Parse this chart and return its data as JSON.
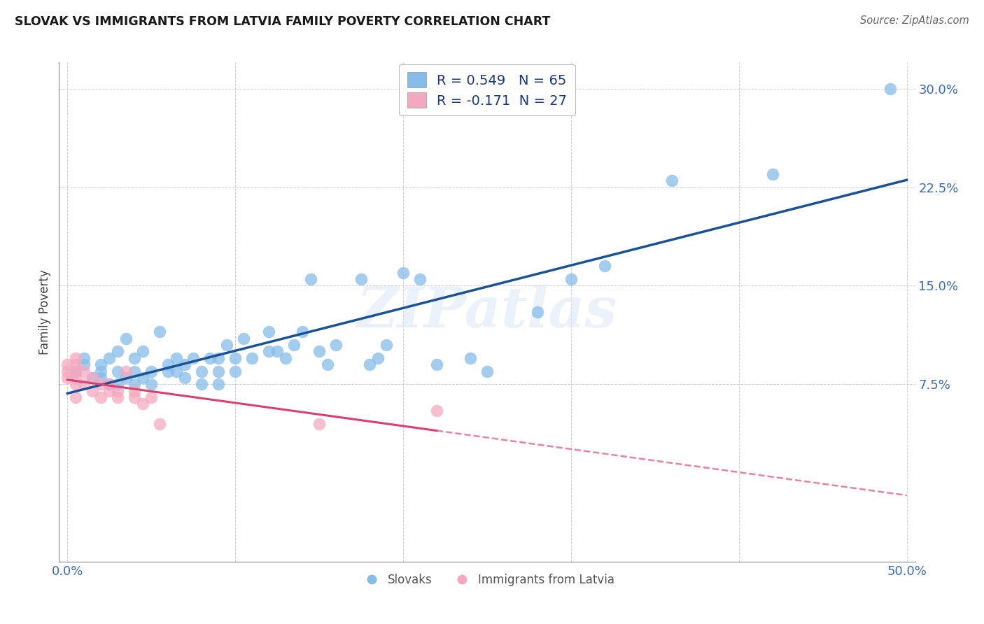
{
  "title": "SLOVAK VS IMMIGRANTS FROM LATVIA FAMILY POVERTY CORRELATION CHART",
  "source": "Source: ZipAtlas.com",
  "ylabel": "Family Poverty",
  "xlabel": "",
  "xlim": [
    -0.005,
    0.505
  ],
  "ylim": [
    -0.06,
    0.32
  ],
  "xticks": [
    0.0,
    0.1,
    0.2,
    0.3,
    0.4,
    0.5
  ],
  "xticklabels": [
    "0.0%",
    "",
    "",
    "",
    "",
    "50.0%"
  ],
  "yticks": [
    0.075,
    0.15,
    0.225,
    0.3
  ],
  "yticklabels": [
    "7.5%",
    "15.0%",
    "22.5%",
    "30.0%"
  ],
  "R_slovak": 0.549,
  "N_slovak": 65,
  "R_latvia": -0.171,
  "N_latvia": 27,
  "color_slovak": "#85bce8",
  "color_latvia": "#f4a8c0",
  "line_color_slovak": "#1a5296",
  "line_color_latvia": "#d94070",
  "watermark": "ZIPatlas",
  "legend_labels": [
    "Slovaks",
    "Immigrants from Latvia"
  ],
  "slovak_x": [
    0.005,
    0.01,
    0.01,
    0.015,
    0.02,
    0.02,
    0.02,
    0.025,
    0.025,
    0.03,
    0.03,
    0.03,
    0.035,
    0.035,
    0.04,
    0.04,
    0.04,
    0.045,
    0.045,
    0.05,
    0.05,
    0.055,
    0.06,
    0.06,
    0.065,
    0.065,
    0.07,
    0.07,
    0.075,
    0.08,
    0.08,
    0.085,
    0.09,
    0.09,
    0.09,
    0.095,
    0.1,
    0.1,
    0.105,
    0.11,
    0.12,
    0.12,
    0.125,
    0.13,
    0.135,
    0.14,
    0.145,
    0.15,
    0.155,
    0.16,
    0.175,
    0.18,
    0.185,
    0.19,
    0.2,
    0.21,
    0.22,
    0.24,
    0.25,
    0.28,
    0.3,
    0.32,
    0.36,
    0.42,
    0.49
  ],
  "slovak_y": [
    0.085,
    0.09,
    0.095,
    0.08,
    0.08,
    0.085,
    0.09,
    0.075,
    0.095,
    0.075,
    0.085,
    0.1,
    0.08,
    0.11,
    0.075,
    0.085,
    0.095,
    0.08,
    0.1,
    0.075,
    0.085,
    0.115,
    0.085,
    0.09,
    0.085,
    0.095,
    0.08,
    0.09,
    0.095,
    0.075,
    0.085,
    0.095,
    0.075,
    0.085,
    0.095,
    0.105,
    0.085,
    0.095,
    0.11,
    0.095,
    0.1,
    0.115,
    0.1,
    0.095,
    0.105,
    0.115,
    0.155,
    0.1,
    0.09,
    0.105,
    0.155,
    0.09,
    0.095,
    0.105,
    0.16,
    0.155,
    0.09,
    0.095,
    0.085,
    0.13,
    0.155,
    0.165,
    0.23,
    0.235,
    0.3
  ],
  "latvia_x": [
    0.0,
    0.0,
    0.0,
    0.005,
    0.005,
    0.005,
    0.005,
    0.005,
    0.005,
    0.01,
    0.01,
    0.015,
    0.015,
    0.02,
    0.02,
    0.025,
    0.025,
    0.03,
    0.03,
    0.035,
    0.04,
    0.04,
    0.045,
    0.05,
    0.055,
    0.15,
    0.22
  ],
  "latvia_y": [
    0.08,
    0.085,
    0.09,
    0.08,
    0.085,
    0.09,
    0.095,
    0.075,
    0.065,
    0.075,
    0.085,
    0.07,
    0.08,
    0.065,
    0.075,
    0.07,
    0.075,
    0.065,
    0.07,
    0.085,
    0.065,
    0.07,
    0.06,
    0.065,
    0.045,
    0.045,
    0.055
  ]
}
